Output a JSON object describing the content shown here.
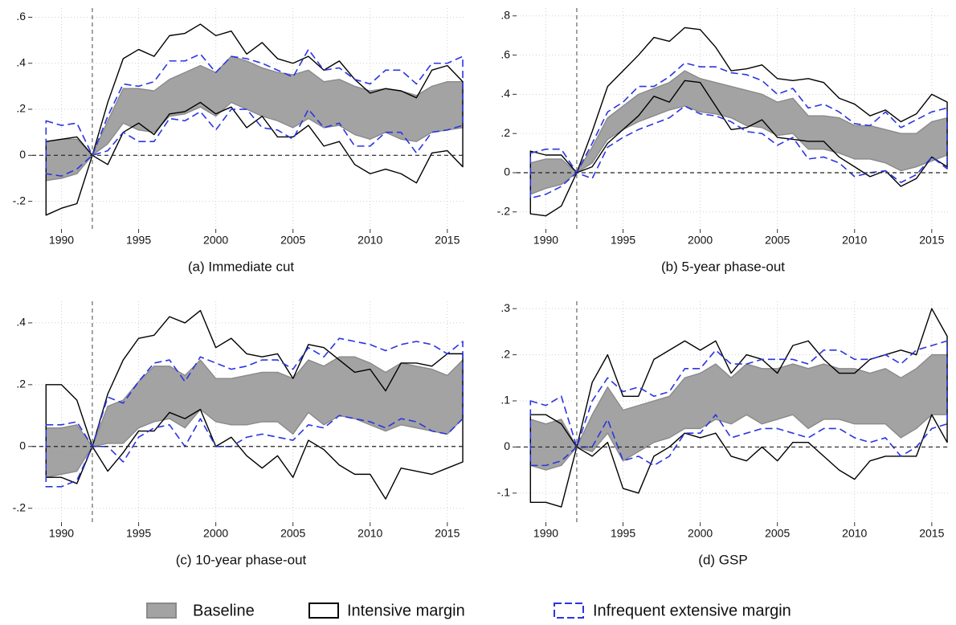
{
  "chart_data": [
    {
      "type": "band",
      "title": "(a) Immediate cut",
      "x": [
        1989,
        1990,
        1991,
        1992,
        1993,
        1994,
        1995,
        1996,
        1997,
        1998,
        1999,
        2000,
        2001,
        2002,
        2003,
        2004,
        2005,
        2006,
        2007,
        2008,
        2009,
        2010,
        2011,
        2012,
        2013,
        2014,
        2015,
        2016
      ],
      "xlim": [
        1988.1,
        2016.05
      ],
      "xticks": [
        1990,
        1995,
        2000,
        2005,
        2010,
        2015
      ],
      "ylim": [
        -0.32,
        0.64
      ],
      "yticks": [
        {
          "value": -0.2,
          "label": "-.2"
        },
        0,
        {
          "value": 0.2,
          "label": ".2"
        },
        {
          "value": 0.4,
          "label": ".4"
        },
        {
          "value": 0.6,
          "label": ".6"
        }
      ],
      "reference_x": 1992,
      "reference_y": 0,
      "grid": true,
      "series": [
        {
          "name": "Baseline",
          "color": "#8a8a8a",
          "fill": "#a3a3a3",
          "dashed": false,
          "upper": [
            0.06,
            0.07,
            0.07,
            0,
            0.15,
            0.29,
            0.29,
            0.28,
            0.33,
            0.36,
            0.39,
            0.36,
            0.43,
            0.41,
            0.38,
            0.36,
            0.35,
            0.37,
            0.32,
            0.33,
            0.3,
            0.28,
            0.29,
            0.28,
            0.26,
            0.3,
            0.32,
            0.32
          ],
          "lower": [
            -0.11,
            -0.1,
            -0.08,
            0,
            0.05,
            0.14,
            0.11,
            0.1,
            0.17,
            0.18,
            0.21,
            0.17,
            0.23,
            0.2,
            0.17,
            0.15,
            0.12,
            0.16,
            0.12,
            0.13,
            0.09,
            0.07,
            0.1,
            0.07,
            0.06,
            0.1,
            0.11,
            0.12
          ]
        },
        {
          "name": "Intensive margin",
          "color": "#000000",
          "fill": "none",
          "dashed": false,
          "upper": [
            0.06,
            0.07,
            0.08,
            0,
            0.23,
            0.42,
            0.46,
            0.43,
            0.52,
            0.53,
            0.57,
            0.52,
            0.54,
            0.44,
            0.49,
            0.42,
            0.4,
            0.43,
            0.37,
            0.41,
            0.33,
            0.27,
            0.29,
            0.28,
            0.25,
            0.37,
            0.39,
            0.32
          ],
          "lower": [
            -0.26,
            -0.23,
            -0.21,
            0,
            -0.04,
            0.1,
            0.14,
            0.09,
            0.18,
            0.19,
            0.23,
            0.18,
            0.21,
            0.12,
            0.17,
            0.08,
            0.08,
            0.13,
            0.04,
            0.06,
            -0.04,
            -0.08,
            -0.06,
            -0.08,
            -0.12,
            0.01,
            0.02,
            -0.05
          ]
        },
        {
          "name": "Infrequent extensive margin",
          "color": "#2b35e0",
          "fill": "none",
          "dashed": true,
          "upper": [
            0.15,
            0.13,
            0.14,
            0,
            0.17,
            0.31,
            0.3,
            0.32,
            0.41,
            0.41,
            0.44,
            0.36,
            0.43,
            0.42,
            0.4,
            0.37,
            0.34,
            0.46,
            0.37,
            0.38,
            0.33,
            0.31,
            0.37,
            0.37,
            0.31,
            0.4,
            0.4,
            0.43
          ],
          "lower": [
            -0.08,
            -0.09,
            -0.06,
            0,
            0.02,
            0.1,
            0.06,
            0.06,
            0.16,
            0.15,
            0.19,
            0.11,
            0.2,
            0.2,
            0.12,
            0.11,
            0.07,
            0.2,
            0.12,
            0.14,
            0.04,
            0.04,
            0.1,
            0.1,
            0.01,
            0.1,
            0.11,
            0.13
          ]
        }
      ]
    },
    {
      "type": "band",
      "title": "(b) 5-year phase-out",
      "x": [
        1989,
        1990,
        1991,
        1992,
        1993,
        1994,
        1995,
        1996,
        1997,
        1998,
        1999,
        2000,
        2001,
        2002,
        2003,
        2004,
        2005,
        2006,
        2007,
        2008,
        2009,
        2010,
        2011,
        2012,
        2013,
        2014,
        2015,
        2016
      ],
      "xlim": [
        1988.1,
        2016.05
      ],
      "xticks": [
        1990,
        1995,
        2000,
        2005,
        2010,
        2015
      ],
      "ylim": [
        -0.287,
        0.84
      ],
      "yticks": [
        {
          "value": -0.2,
          "label": "-.2"
        },
        0,
        {
          "value": 0.2,
          "label": ".2"
        },
        {
          "value": 0.4,
          "label": ".4"
        },
        {
          "value": 0.6,
          "label": ".6"
        },
        {
          "value": 0.8,
          "label": ".8"
        }
      ],
      "reference_x": 1992,
      "reference_y": 0,
      "grid": true,
      "series": [
        {
          "name": "Baseline",
          "color": "#8a8a8a",
          "fill": "#a3a3a3",
          "dashed": false,
          "upper": [
            0.05,
            0.07,
            0.07,
            0,
            0.13,
            0.28,
            0.34,
            0.4,
            0.43,
            0.46,
            0.52,
            0.48,
            0.46,
            0.44,
            0.42,
            0.4,
            0.36,
            0.38,
            0.29,
            0.29,
            0.28,
            0.24,
            0.24,
            0.22,
            0.2,
            0.2,
            0.26,
            0.28
          ],
          "lower": [
            -0.11,
            -0.08,
            -0.06,
            0,
            0.05,
            0.17,
            0.22,
            0.26,
            0.29,
            0.32,
            0.34,
            0.31,
            0.3,
            0.28,
            0.24,
            0.23,
            0.19,
            0.2,
            0.12,
            0.12,
            0.1,
            0.07,
            0.07,
            0.05,
            0.01,
            0.03,
            0.06,
            0.09
          ]
        },
        {
          "name": "Intensive margin",
          "color": "#000000",
          "fill": "none",
          "dashed": false,
          "upper": [
            0.11,
            0.09,
            0.09,
            0,
            0.21,
            0.44,
            0.52,
            0.6,
            0.69,
            0.67,
            0.74,
            0.73,
            0.64,
            0.52,
            0.53,
            0.55,
            0.48,
            0.47,
            0.48,
            0.46,
            0.38,
            0.35,
            0.29,
            0.32,
            0.26,
            0.3,
            0.4,
            0.36
          ],
          "lower": [
            -0.21,
            -0.22,
            -0.17,
            0,
            0.03,
            0.15,
            0.22,
            0.29,
            0.39,
            0.36,
            0.47,
            0.46,
            0.34,
            0.22,
            0.23,
            0.27,
            0.18,
            0.17,
            0.16,
            0.16,
            0.08,
            0.03,
            -0.02,
            0.01,
            -0.07,
            -0.03,
            0.08,
            0.03
          ]
        },
        {
          "name": "Infrequent extensive margin",
          "color": "#2b35e0",
          "fill": "none",
          "dashed": true,
          "upper": [
            0.1,
            0.12,
            0.12,
            0,
            0.15,
            0.31,
            0.36,
            0.44,
            0.44,
            0.49,
            0.56,
            0.54,
            0.54,
            0.51,
            0.5,
            0.47,
            0.4,
            0.43,
            0.33,
            0.35,
            0.31,
            0.25,
            0.24,
            0.31,
            0.23,
            0.27,
            0.31,
            0.33
          ],
          "lower": [
            -0.13,
            -0.11,
            -0.07,
            0,
            -0.03,
            0.13,
            0.18,
            0.22,
            0.25,
            0.28,
            0.34,
            0.3,
            0.29,
            0.26,
            0.21,
            0.2,
            0.14,
            0.18,
            0.07,
            0.08,
            0.05,
            -0.02,
            0.0,
            0.01,
            -0.05,
            -0.01,
            0.08,
            0.02
          ]
        }
      ]
    },
    {
      "type": "band",
      "title": "(c) 10-year phase-out",
      "x": [
        1989,
        1990,
        1991,
        1992,
        1993,
        1994,
        1995,
        1996,
        1997,
        1998,
        1999,
        2000,
        2001,
        2002,
        2003,
        2004,
        2005,
        2006,
        2007,
        2008,
        2009,
        2010,
        2011,
        2012,
        2013,
        2014,
        2015,
        2016
      ],
      "xlim": [
        1988.1,
        2016.05
      ],
      "xticks": [
        1990,
        1995,
        2000,
        2005,
        2010,
        2015
      ],
      "ylim": [
        -0.245,
        0.47
      ],
      "yticks": [
        {
          "value": -0.2,
          "label": "-.2"
        },
        0,
        {
          "value": 0.2,
          "label": ".2"
        },
        {
          "value": 0.4,
          "label": ".4"
        }
      ],
      "reference_x": 1992,
      "reference_y": 0,
      "grid": true,
      "series": [
        {
          "name": "Baseline",
          "color": "#8a8a8a",
          "fill": "#a3a3a3",
          "dashed": false,
          "upper": [
            0.06,
            0.06,
            0.07,
            0,
            0.13,
            0.15,
            0.21,
            0.26,
            0.26,
            0.23,
            0.28,
            0.22,
            0.22,
            0.23,
            0.24,
            0.24,
            0.22,
            0.28,
            0.26,
            0.29,
            0.29,
            0.27,
            0.24,
            0.27,
            0.26,
            0.25,
            0.23,
            0.28
          ],
          "lower": [
            -0.1,
            -0.09,
            -0.08,
            0,
            0.01,
            0.01,
            0.06,
            0.08,
            0.09,
            0.06,
            0.12,
            0.08,
            0.07,
            0.07,
            0.08,
            0.08,
            0.04,
            0.11,
            0.07,
            0.1,
            0.09,
            0.07,
            0.05,
            0.07,
            0.06,
            0.05,
            0.04,
            0.09
          ]
        },
        {
          "name": "Intensive margin",
          "color": "#000000",
          "fill": "none",
          "dashed": false,
          "upper": [
            0.2,
            0.2,
            0.15,
            0,
            0.17,
            0.28,
            0.35,
            0.36,
            0.42,
            0.4,
            0.44,
            0.32,
            0.35,
            0.3,
            0.29,
            0.3,
            0.22,
            0.33,
            0.32,
            0.28,
            0.24,
            0.25,
            0.18,
            0.27,
            0.27,
            0.26,
            0.3,
            0.3
          ],
          "lower": [
            -0.1,
            -0.1,
            -0.12,
            0,
            -0.08,
            -0.02,
            0.05,
            0.05,
            0.11,
            0.09,
            0.12,
            0.0,
            0.03,
            -0.03,
            -0.07,
            -0.03,
            -0.1,
            0.02,
            -0.01,
            -0.06,
            -0.09,
            -0.09,
            -0.17,
            -0.07,
            -0.08,
            -0.09,
            -0.07,
            -0.05
          ]
        },
        {
          "name": "Infrequent extensive margin",
          "color": "#2b35e0",
          "fill": "none",
          "dashed": true,
          "upper": [
            0.07,
            0.07,
            0.08,
            0,
            0.16,
            0.14,
            0.21,
            0.27,
            0.28,
            0.21,
            0.29,
            0.27,
            0.25,
            0.26,
            0.28,
            0.28,
            0.25,
            0.32,
            0.29,
            0.35,
            0.34,
            0.33,
            0.31,
            0.33,
            0.34,
            0.33,
            0.3,
            0.34
          ],
          "lower": [
            -0.13,
            -0.13,
            -0.11,
            0,
            0.0,
            -0.05,
            0.03,
            0.06,
            0.07,
            0.0,
            0.09,
            0.0,
            0.0,
            0.03,
            0.04,
            0.03,
            0.02,
            0.07,
            0.06,
            0.1,
            0.09,
            0.08,
            0.06,
            0.09,
            0.08,
            0.05,
            0.04,
            0.09
          ]
        }
      ]
    },
    {
      "type": "band",
      "title": "(d) GSP",
      "x": [
        1989,
        1990,
        1991,
        1992,
        1993,
        1994,
        1995,
        1996,
        1997,
        1998,
        1999,
        2000,
        2001,
        2002,
        2003,
        2004,
        2005,
        2006,
        2007,
        2008,
        2009,
        2010,
        2011,
        2012,
        2013,
        2014,
        2015,
        2016
      ],
      "xlim": [
        1988.1,
        2016.05
      ],
      "xticks": [
        1990,
        1995,
        2000,
        2005,
        2010,
        2015
      ],
      "ylim": [
        -0.163,
        0.316
      ],
      "yticks": [
        {
          "value": -0.1,
          "label": "-.1"
        },
        0,
        {
          "value": 0.1,
          "label": ".1"
        },
        {
          "value": 0.2,
          "label": ".2"
        },
        {
          "value": 0.3,
          "label": ".3"
        }
      ],
      "reference_x": 1992,
      "reference_y": 0,
      "grid": true,
      "series": [
        {
          "name": "Baseline",
          "color": "#8a8a8a",
          "fill": "#a3a3a3",
          "dashed": false,
          "upper": [
            0.06,
            0.05,
            0.06,
            0,
            0.07,
            0.13,
            0.08,
            0.09,
            0.1,
            0.11,
            0.15,
            0.16,
            0.18,
            0.15,
            0.18,
            0.17,
            0.17,
            0.18,
            0.17,
            0.18,
            0.17,
            0.17,
            0.16,
            0.17,
            0.15,
            0.17,
            0.2,
            0.2
          ],
          "lower": [
            -0.04,
            -0.05,
            -0.04,
            0,
            -0.01,
            0.03,
            -0.03,
            -0.01,
            0.01,
            0.02,
            0.04,
            0.04,
            0.06,
            0.05,
            0.07,
            0.05,
            0.06,
            0.07,
            0.04,
            0.06,
            0.06,
            0.05,
            0.05,
            0.05,
            0.02,
            0.04,
            0.07,
            0.07
          ]
        },
        {
          "name": "Intensive margin",
          "color": "#000000",
          "fill": "none",
          "dashed": false,
          "upper": [
            0.07,
            0.07,
            0.05,
            0,
            0.14,
            0.2,
            0.11,
            0.11,
            0.19,
            0.21,
            0.23,
            0.21,
            0.23,
            0.16,
            0.2,
            0.19,
            0.16,
            0.22,
            0.23,
            0.19,
            0.16,
            0.16,
            0.19,
            0.2,
            0.21,
            0.2,
            0.3,
            0.24
          ],
          "lower": [
            -0.12,
            -0.12,
            -0.13,
            0,
            -0.02,
            0.01,
            -0.09,
            -0.1,
            -0.02,
            0.0,
            0.03,
            0.02,
            0.03,
            -0.02,
            -0.03,
            0.0,
            -0.03,
            0.01,
            0.01,
            -0.02,
            -0.05,
            -0.07,
            -0.03,
            -0.02,
            -0.02,
            -0.02,
            0.07,
            0.01
          ]
        },
        {
          "name": "Infrequent extensive margin",
          "color": "#2b35e0",
          "fill": "none",
          "dashed": true,
          "upper": [
            0.1,
            0.09,
            0.11,
            0,
            0.1,
            0.15,
            0.12,
            0.13,
            0.11,
            0.12,
            0.17,
            0.17,
            0.21,
            0.18,
            0.18,
            0.19,
            0.19,
            0.19,
            0.18,
            0.21,
            0.21,
            0.19,
            0.19,
            0.2,
            0.18,
            0.21,
            0.22,
            0.23
          ],
          "lower": [
            -0.04,
            -0.04,
            -0.03,
            0,
            0.0,
            0.06,
            -0.03,
            -0.02,
            -0.04,
            -0.02,
            0.03,
            0.03,
            0.07,
            0.02,
            0.03,
            0.04,
            0.04,
            0.03,
            0.02,
            0.04,
            0.04,
            0.02,
            0.01,
            0.02,
            -0.02,
            0.0,
            0.04,
            0.05
          ]
        }
      ]
    }
  ]
}
